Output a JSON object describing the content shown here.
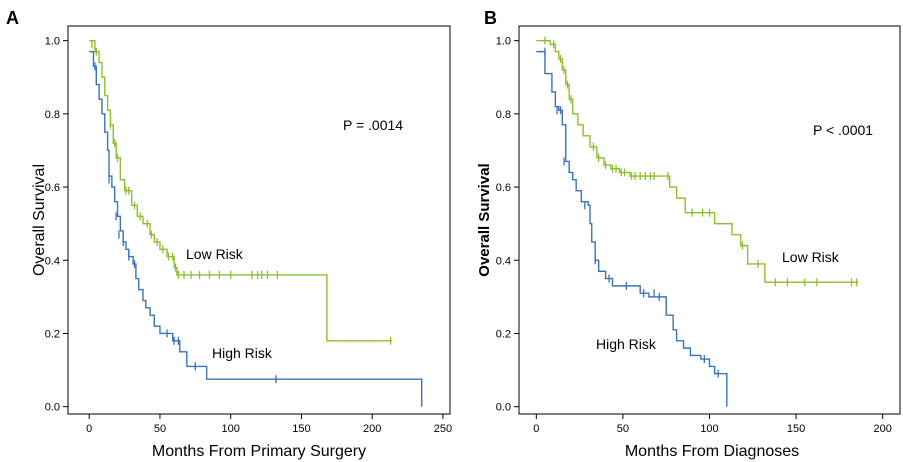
{
  "chart_data": [
    {
      "panel_label": "A",
      "type": "line",
      "subtype": "kaplan-meier-step",
      "xlabel": "Months From Primary Surgery",
      "ylabel": "Overall Survival",
      "xlim": [
        -15,
        255
      ],
      "ylim": [
        -0.02,
        1.04
      ],
      "x_ticks": [
        0,
        50,
        100,
        150,
        200,
        250
      ],
      "y_ticks": [
        0.0,
        0.2,
        0.4,
        0.6,
        0.8,
        1.0
      ],
      "p_value_text": "P = .0014",
      "series": [
        {
          "name": "Low Risk",
          "color": "#8dbf2e",
          "steps": [
            [
              0,
              1.0
            ],
            [
              4,
              0.97
            ],
            [
              7,
              0.94
            ],
            [
              9,
              0.9
            ],
            [
              11,
              0.85
            ],
            [
              13,
              0.81
            ],
            [
              15,
              0.77
            ],
            [
              17,
              0.72
            ],
            [
              19,
              0.68
            ],
            [
              22,
              0.62
            ],
            [
              25,
              0.59
            ],
            [
              30,
              0.55
            ],
            [
              34,
              0.52
            ],
            [
              38,
              0.5
            ],
            [
              43,
              0.47
            ],
            [
              46,
              0.45
            ],
            [
              50,
              0.43
            ],
            [
              55,
              0.41
            ],
            [
              60,
              0.38
            ],
            [
              62,
              0.36
            ],
            [
              168,
              0.36
            ],
            [
              168,
              0.18
            ],
            [
              214,
              0.18
            ]
          ],
          "censored": [
            [
              2,
              0.99
            ],
            [
              5,
              0.97
            ],
            [
              15,
              0.77
            ],
            [
              18,
              0.72
            ],
            [
              20,
              0.68
            ],
            [
              26,
              0.59
            ],
            [
              28,
              0.59
            ],
            [
              32,
              0.55
            ],
            [
              36,
              0.52
            ],
            [
              41,
              0.5
            ],
            [
              44,
              0.47
            ],
            [
              48,
              0.45
            ],
            [
              52,
              0.43
            ],
            [
              56,
              0.41
            ],
            [
              59,
              0.41
            ],
            [
              61,
              0.38
            ],
            [
              63,
              0.36
            ],
            [
              67,
              0.36
            ],
            [
              72,
              0.36
            ],
            [
              78,
              0.36
            ],
            [
              85,
              0.36
            ],
            [
              92,
              0.36
            ],
            [
              100,
              0.36
            ],
            [
              115,
              0.36
            ],
            [
              119,
              0.36
            ],
            [
              122,
              0.36
            ],
            [
              126,
              0.36
            ],
            [
              133,
              0.36
            ],
            [
              213,
              0.18
            ]
          ],
          "label_text": "Low Risk"
        },
        {
          "name": "High Risk",
          "color": "#3b73b9",
          "steps": [
            [
              0,
              0.97
            ],
            [
              3,
              0.93
            ],
            [
              5,
              0.88
            ],
            [
              7,
              0.84
            ],
            [
              9,
              0.8
            ],
            [
              11,
              0.75
            ],
            [
              13,
              0.7
            ],
            [
              14,
              0.63
            ],
            [
              16,
              0.6
            ],
            [
              18,
              0.56
            ],
            [
              20,
              0.52
            ],
            [
              22,
              0.48
            ],
            [
              24,
              0.45
            ],
            [
              26,
              0.43
            ],
            [
              28,
              0.41
            ],
            [
              31,
              0.39
            ],
            [
              33,
              0.35
            ],
            [
              35,
              0.32
            ],
            [
              38,
              0.29
            ],
            [
              40,
              0.27
            ],
            [
              43,
              0.25
            ],
            [
              46,
              0.22
            ],
            [
              50,
              0.2
            ],
            [
              59,
              0.18
            ],
            [
              64,
              0.15
            ],
            [
              69,
              0.11
            ],
            [
              83,
              0.075
            ],
            [
              235,
              0.075
            ],
            [
              235,
              0.0
            ]
          ],
          "censored": [
            [
              4,
              0.93
            ],
            [
              14,
              0.62
            ],
            [
              19,
              0.52
            ],
            [
              21,
              0.47
            ],
            [
              24,
              0.45
            ],
            [
              28,
              0.41
            ],
            [
              32,
              0.39
            ],
            [
              55,
              0.2
            ],
            [
              60,
              0.18
            ],
            [
              63,
              0.18
            ],
            [
              75,
              0.11
            ],
            [
              132,
              0.075
            ]
          ],
          "label_text": "High Risk"
        }
      ]
    },
    {
      "panel_label": "B",
      "type": "line",
      "subtype": "kaplan-meier-step",
      "xlabel": "Months From Diagnoses",
      "ylabel": "Overall Survival",
      "xlim": [
        -10,
        210
      ],
      "ylim": [
        -0.02,
        1.04
      ],
      "x_ticks": [
        0,
        50,
        100,
        150,
        200
      ],
      "y_ticks": [
        0.0,
        0.2,
        0.4,
        0.6,
        0.8,
        1.0
      ],
      "p_value_text": "P < .0001",
      "series": [
        {
          "name": "Low Risk",
          "color": "#8dbf2e",
          "steps": [
            [
              0,
              1.0
            ],
            [
              8,
              0.99
            ],
            [
              11,
              0.97
            ],
            [
              13,
              0.95
            ],
            [
              15,
              0.92
            ],
            [
              17,
              0.88
            ],
            [
              19,
              0.84
            ],
            [
              21,
              0.8
            ],
            [
              24,
              0.77
            ],
            [
              27,
              0.74
            ],
            [
              31,
              0.71
            ],
            [
              35,
              0.68
            ],
            [
              39,
              0.66
            ],
            [
              43,
              0.65
            ],
            [
              48,
              0.64
            ],
            [
              54,
              0.63
            ],
            [
              77,
              0.6
            ],
            [
              81,
              0.57
            ],
            [
              86,
              0.53
            ],
            [
              103,
              0.5
            ],
            [
              113,
              0.47
            ],
            [
              118,
              0.44
            ],
            [
              122,
              0.39
            ],
            [
              130,
              0.39
            ],
            [
              132,
              0.34
            ],
            [
              186,
              0.34
            ]
          ],
          "censored": [
            [
              5,
              1.0
            ],
            [
              10,
              0.99
            ],
            [
              14,
              0.95
            ],
            [
              16,
              0.92
            ],
            [
              18,
              0.88
            ],
            [
              20,
              0.84
            ],
            [
              33,
              0.71
            ],
            [
              36,
              0.68
            ],
            [
              40,
              0.66
            ],
            [
              44,
              0.65
            ],
            [
              46,
              0.65
            ],
            [
              49,
              0.64
            ],
            [
              51,
              0.64
            ],
            [
              55,
              0.63
            ],
            [
              57,
              0.63
            ],
            [
              60,
              0.63
            ],
            [
              63,
              0.63
            ],
            [
              66,
              0.63
            ],
            [
              68,
              0.63
            ],
            [
              76,
              0.63
            ],
            [
              90,
              0.53
            ],
            [
              96,
              0.53
            ],
            [
              100,
              0.53
            ],
            [
              119,
              0.44
            ],
            [
              128,
              0.39
            ],
            [
              138,
              0.34
            ],
            [
              145,
              0.34
            ],
            [
              155,
              0.34
            ],
            [
              162,
              0.34
            ],
            [
              182,
              0.34
            ],
            [
              185,
              0.34
            ]
          ],
          "label_text": "Low Risk"
        },
        {
          "name": "High Risk",
          "color": "#3b73b9",
          "steps": [
            [
              0,
              0.97
            ],
            [
              5,
              0.91
            ],
            [
              9,
              0.86
            ],
            [
              11,
              0.82
            ],
            [
              13,
              0.81
            ],
            [
              15,
              0.77
            ],
            [
              17,
              0.67
            ],
            [
              19,
              0.64
            ],
            [
              21,
              0.62
            ],
            [
              23,
              0.59
            ],
            [
              26,
              0.56
            ],
            [
              30,
              0.55
            ],
            [
              31,
              0.5
            ],
            [
              32,
              0.45
            ],
            [
              34,
              0.4
            ],
            [
              36,
              0.37
            ],
            [
              40,
              0.35
            ],
            [
              44,
              0.33
            ],
            [
              60,
              0.31
            ],
            [
              65,
              0.3
            ],
            [
              75,
              0.25
            ],
            [
              79,
              0.21
            ],
            [
              81,
              0.18
            ],
            [
              85,
              0.16
            ],
            [
              89,
              0.14
            ],
            [
              95,
              0.13
            ],
            [
              100,
              0.11
            ],
            [
              103,
              0.09
            ],
            [
              110,
              0.09
            ],
            [
              110,
              0.0
            ]
          ],
          "censored": [
            [
              5,
              0.97
            ],
            [
              12,
              0.81
            ],
            [
              14,
              0.81
            ],
            [
              16,
              0.67
            ],
            [
              28,
              0.55
            ],
            [
              34,
              0.4
            ],
            [
              42,
              0.35
            ],
            [
              52,
              0.33
            ],
            [
              62,
              0.31
            ],
            [
              68,
              0.31
            ],
            [
              71,
              0.3
            ],
            [
              97,
              0.13
            ],
            [
              105,
              0.09
            ]
          ],
          "label_text": "High Risk"
        }
      ]
    }
  ]
}
